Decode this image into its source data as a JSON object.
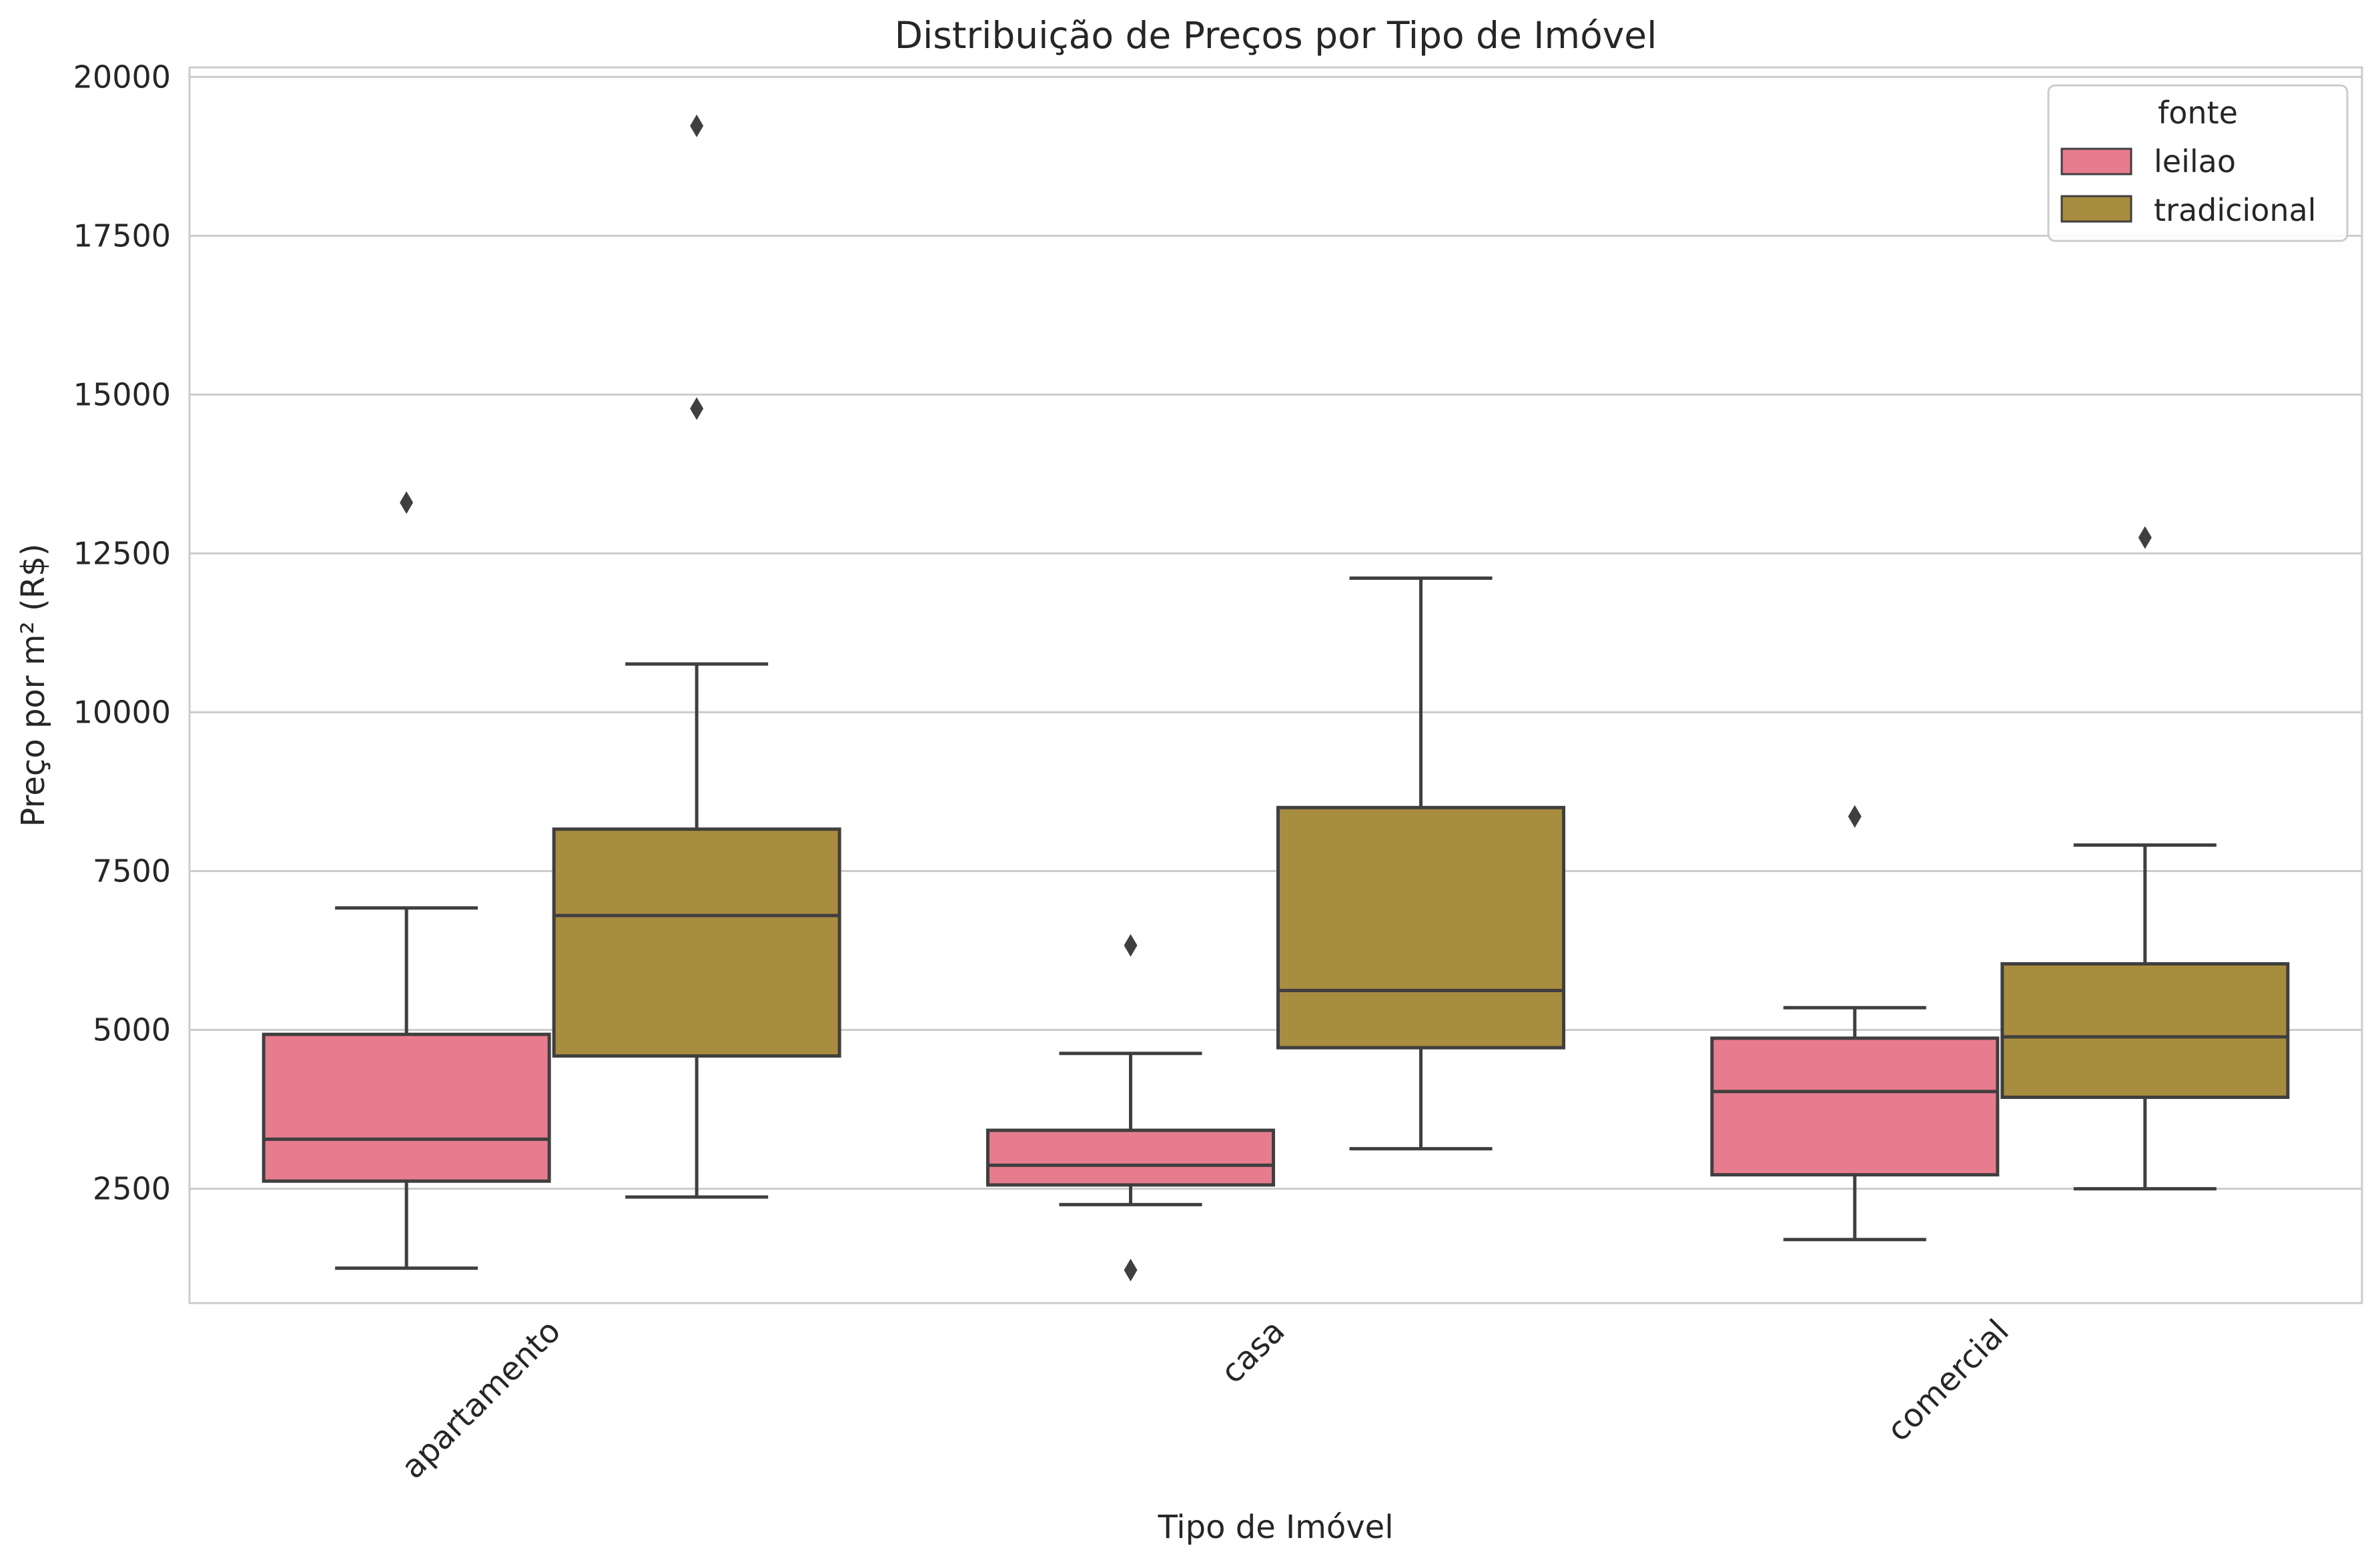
{
  "chart_data": {
    "type": "boxplot",
    "title": "Distribuição de Preços por Tipo de Imóvel",
    "xlabel": "Tipo de Imóvel",
    "ylabel": "Preço por m² (R$)",
    "ylim": [
      700,
      20150
    ],
    "yticks": [
      2500,
      5000,
      7500,
      10000,
      12500,
      15000,
      17500,
      20000
    ],
    "categories": [
      "apartamento",
      "casa",
      "comercial"
    ],
    "grid": "horizontal",
    "legend": {
      "title": "fonte",
      "placement": "top-right"
    },
    "series": [
      {
        "name": "leilao",
        "color": "#e77c8e",
        "boxes": [
          {
            "whisker_low": 1250,
            "q1": 2620,
            "median": 3280,
            "q3": 4930,
            "whisker_high": 6920,
            "outliers": [
              13300
            ]
          },
          {
            "whisker_low": 2250,
            "q1": 2560,
            "median": 2870,
            "q3": 3420,
            "whisker_high": 4630,
            "outliers": [
              6330,
              1220
            ]
          },
          {
            "whisker_low": 1700,
            "q1": 2720,
            "median": 4030,
            "q3": 4870,
            "whisker_high": 5350,
            "outliers": [
              8360
            ]
          }
        ]
      },
      {
        "name": "tradicional",
        "color": "#a88c3f",
        "boxes": [
          {
            "whisker_low": 2370,
            "q1": 4590,
            "median": 6800,
            "q3": 8160,
            "whisker_high": 10760,
            "outliers": [
              19230,
              14780
            ]
          },
          {
            "whisker_low": 3130,
            "q1": 4720,
            "median": 5620,
            "q3": 8500,
            "whisker_high": 12110,
            "outliers": []
          },
          {
            "whisker_low": 2500,
            "q1": 3940,
            "median": 4890,
            "q3": 6040,
            "whisker_high": 7910,
            "outliers": [
              12750
            ]
          }
        ]
      }
    ]
  }
}
